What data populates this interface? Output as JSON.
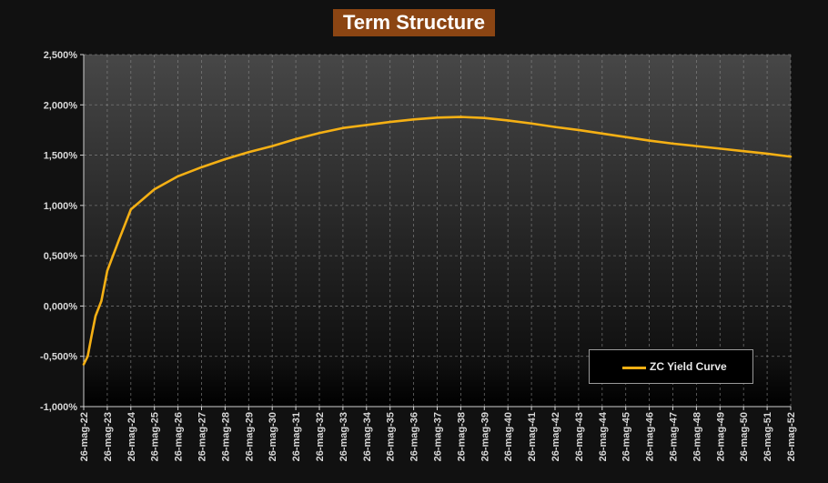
{
  "chart_data": {
    "type": "line",
    "title": "Term Structure",
    "xlabel": "",
    "ylabel": "",
    "x": [
      "26-mag-22",
      "26-mag-23",
      "26-mag-24",
      "26-mag-25",
      "26-mag-26",
      "26-mag-27",
      "26-mag-28",
      "26-mag-29",
      "26-mag-30",
      "26-mag-31",
      "26-mag-32",
      "26-mag-33",
      "26-mag-34",
      "26-mag-35",
      "26-mag-36",
      "26-mag-37",
      "26-mag-38",
      "26-mag-39",
      "26-mag-40",
      "26-mag-41",
      "26-mag-42",
      "26-mag-43",
      "26-mag-44",
      "26-mag-45",
      "26-mag-46",
      "26-mag-47",
      "26-mag-48",
      "26-mag-49",
      "26-mag-50",
      "26-mag-51",
      "26-mag-52"
    ],
    "yticks": [
      "-1,000%",
      "-0,500%",
      "0,000%",
      "0,500%",
      "1,000%",
      "1,500%",
      "2,000%",
      "2,500%"
    ],
    "ylim": [
      -1.0,
      2.5
    ],
    "grid": true,
    "legend_position": "bottom-right",
    "series": [
      {
        "name": "ZC Yield Curve",
        "color": "#f5b014",
        "points": [
          [
            0.0,
            -0.58
          ],
          [
            0.17,
            -0.5
          ],
          [
            0.33,
            -0.3
          ],
          [
            0.5,
            -0.1
          ],
          [
            0.75,
            0.05
          ],
          [
            1.0,
            0.35
          ],
          [
            1.5,
            0.66
          ],
          [
            2.0,
            0.96
          ],
          [
            3.0,
            1.16
          ],
          [
            4.0,
            1.29
          ],
          [
            5.0,
            1.38
          ],
          [
            6.0,
            1.46
          ],
          [
            7.0,
            1.53
          ],
          [
            8.0,
            1.59
          ],
          [
            9.0,
            1.66
          ],
          [
            10.0,
            1.72
          ],
          [
            11.0,
            1.77
          ],
          [
            12.0,
            1.8
          ],
          [
            13.0,
            1.83
          ],
          [
            14.0,
            1.855
          ],
          [
            15.0,
            1.873
          ],
          [
            16.0,
            1.88
          ],
          [
            17.0,
            1.87
          ],
          [
            18.0,
            1.845
          ],
          [
            19.0,
            1.815
          ],
          [
            20.0,
            1.78
          ],
          [
            21.0,
            1.75
          ],
          [
            22.0,
            1.715
          ],
          [
            23.0,
            1.68
          ],
          [
            24.0,
            1.645
          ],
          [
            25.0,
            1.615
          ],
          [
            26.0,
            1.59
          ],
          [
            27.0,
            1.565
          ],
          [
            28.0,
            1.54
          ],
          [
            29.0,
            1.515
          ],
          [
            30.0,
            1.485
          ]
        ]
      }
    ]
  }
}
